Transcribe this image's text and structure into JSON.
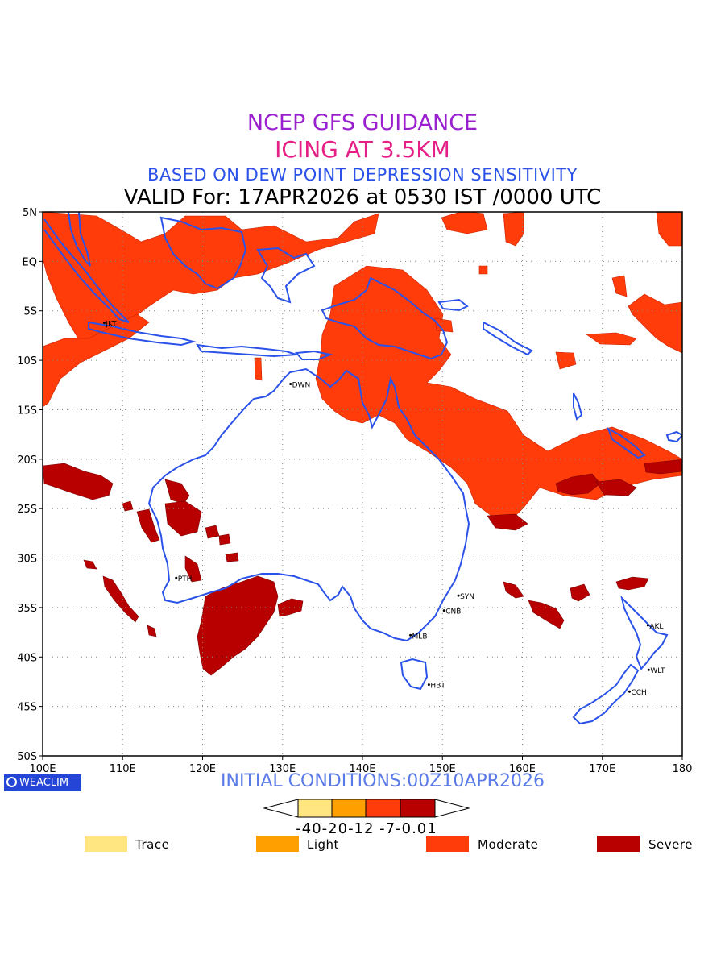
{
  "title": {
    "line1": "NCEP GFS GUIDANCE",
    "line2": "ICING AT 3.5KM",
    "line3": "BASED ON DEW POINT DEPRESSION SENSITIVITY",
    "line4": "VALID For: 17APR2026 at 0530 IST /0000 UTC"
  },
  "axes": {
    "lat_labels": [
      "5N",
      "EQ",
      "5S",
      "10S",
      "15S",
      "20S",
      "25S",
      "30S",
      "35S",
      "40S",
      "45S",
      "50S"
    ],
    "lon_labels": [
      "100E",
      "110E",
      "120E",
      "130E",
      "140E",
      "150E",
      "160E",
      "170E",
      "180"
    ]
  },
  "stations": [
    {
      "code": "JKT",
      "lon": 107.7,
      "lat": -6.2
    },
    {
      "code": "DWN",
      "lon": 131.0,
      "lat": -12.4
    },
    {
      "code": "PTH",
      "lon": 116.7,
      "lat": -32.0
    },
    {
      "code": "SYN",
      "lon": 152.0,
      "lat": -33.8
    },
    {
      "code": "CNB",
      "lon": 150.2,
      "lat": -35.3
    },
    {
      "code": "MLB",
      "lon": 146.0,
      "lat": -37.8
    },
    {
      "code": "HBT",
      "lon": 148.3,
      "lat": -42.8
    },
    {
      "code": "AKL",
      "lon": 175.7,
      "lat": -36.8
    },
    {
      "code": "WLT",
      "lon": 175.8,
      "lat": -41.3
    },
    {
      "code": "CCH",
      "lon": 173.4,
      "lat": -43.5
    }
  ],
  "colorbar": {
    "ticks": [
      "-40",
      "-20",
      "-12",
      "-7",
      "-0.01"
    ],
    "ticks_text": "-40-20-12 -7-0.01"
  },
  "legend": [
    {
      "label": "Trace",
      "color": "#ffe680"
    },
    {
      "label": "Light",
      "color": "#ffa000"
    },
    {
      "label": "Moderate",
      "color": "#ff3c0a"
    },
    {
      "label": "Severe",
      "color": "#b90000"
    }
  ],
  "colors": {
    "moderate": "#ff3c0a",
    "severe": "#b90000",
    "coast": "#2a52e8"
  },
  "footer": {
    "logo": "WEACLIM",
    "initial_conditions": "INITIAL CONDITIONS:00Z10APR2026"
  }
}
